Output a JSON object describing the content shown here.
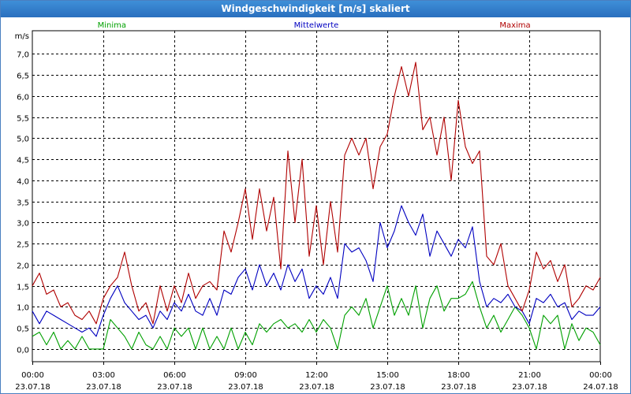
{
  "chart_data": {
    "type": "line",
    "title": "Windgeschwindigkeit [m/s] skaliert",
    "ylabel": "m/s",
    "ylim": [
      -0.3,
      7.55
    ],
    "yticks": [
      0.0,
      0.5,
      1.0,
      1.5,
      2.0,
      2.5,
      3.0,
      3.5,
      4.0,
      4.5,
      5.0,
      5.5,
      6.0,
      6.5,
      7.0
    ],
    "ytick_labels": [
      "0,0",
      "0,5",
      "1,0",
      "1,5",
      "2,0",
      "2,5",
      "3,0",
      "3,5",
      "4,0",
      "4,5",
      "5,0",
      "5,5",
      "6,0",
      "6,5",
      "7,0"
    ],
    "xlim": [
      0,
      24
    ],
    "xticks": [
      {
        "h": 0,
        "time": "00:00",
        "date": "23.07.18"
      },
      {
        "h": 3,
        "time": "03:00",
        "date": "23.07.18"
      },
      {
        "h": 6,
        "time": "06:00",
        "date": "23.07.18"
      },
      {
        "h": 9,
        "time": "09:00",
        "date": "23.07.18"
      },
      {
        "h": 12,
        "time": "12:00",
        "date": "23.07.18"
      },
      {
        "h": 15,
        "time": "15:00",
        "date": "23.07.18"
      },
      {
        "h": 18,
        "time": "18:00",
        "date": "23.07.18"
      },
      {
        "h": 21,
        "time": "21:00",
        "date": "23.07.18"
      },
      {
        "h": 24,
        "time": "00:00",
        "date": "24.07.18"
      }
    ],
    "grid": true,
    "legend_placement": "top",
    "series": [
      {
        "name": "Minima",
        "color": "#00a000",
        "x": [
          0,
          0.3,
          0.6,
          0.9,
          1.2,
          1.5,
          1.8,
          2.1,
          2.4,
          2.7,
          3.0,
          3.3,
          3.6,
          3.9,
          4.2,
          4.5,
          4.8,
          5.1,
          5.4,
          5.7,
          6.0,
          6.3,
          6.6,
          6.9,
          7.2,
          7.5,
          7.8,
          8.1,
          8.4,
          8.7,
          9.0,
          9.3,
          9.6,
          9.9,
          10.2,
          10.5,
          10.8,
          11.1,
          11.4,
          11.7,
          12.0,
          12.3,
          12.6,
          12.9,
          13.2,
          13.5,
          13.8,
          14.1,
          14.4,
          14.7,
          15.0,
          15.3,
          15.6,
          15.9,
          16.2,
          16.5,
          16.8,
          17.1,
          17.4,
          17.7,
          18.0,
          18.3,
          18.6,
          18.9,
          19.2,
          19.5,
          19.8,
          20.1,
          20.4,
          20.7,
          21.0,
          21.3,
          21.6,
          21.9,
          22.2,
          22.5,
          22.8,
          23.1,
          23.4,
          23.7,
          24.0
        ],
        "y": [
          0.3,
          0.4,
          0.1,
          0.4,
          0.0,
          0.2,
          0.0,
          0.3,
          0.0,
          0.0,
          0.0,
          0.7,
          0.5,
          0.3,
          0.0,
          0.4,
          0.1,
          0.0,
          0.3,
          0.0,
          0.5,
          0.3,
          0.5,
          0.0,
          0.5,
          0.0,
          0.3,
          0.0,
          0.5,
          0.0,
          0.4,
          0.1,
          0.6,
          0.4,
          0.6,
          0.7,
          0.5,
          0.6,
          0.4,
          0.7,
          0.4,
          0.7,
          0.5,
          0.0,
          0.8,
          1.0,
          0.8,
          1.2,
          0.5,
          1.0,
          1.5,
          0.8,
          1.2,
          0.8,
          1.5,
          0.5,
          1.2,
          1.5,
          0.9,
          1.2,
          1.2,
          1.3,
          1.6,
          1.0,
          0.5,
          0.8,
          0.4,
          0.7,
          1.0,
          0.8,
          0.5,
          0.0,
          0.8,
          0.6,
          0.8,
          0.0,
          0.6,
          0.2,
          0.5,
          0.4,
          0.1
        ]
      },
      {
        "name": "Mittelwerte",
        "color": "#0000c0",
        "x": [
          0,
          0.3,
          0.6,
          0.9,
          1.2,
          1.5,
          1.8,
          2.1,
          2.4,
          2.7,
          3.0,
          3.3,
          3.6,
          3.9,
          4.2,
          4.5,
          4.8,
          5.1,
          5.4,
          5.7,
          6.0,
          6.3,
          6.6,
          6.9,
          7.2,
          7.5,
          7.8,
          8.1,
          8.4,
          8.7,
          9.0,
          9.3,
          9.6,
          9.9,
          10.2,
          10.5,
          10.8,
          11.1,
          11.4,
          11.7,
          12.0,
          12.3,
          12.6,
          12.9,
          13.2,
          13.5,
          13.8,
          14.1,
          14.4,
          14.7,
          15.0,
          15.3,
          15.6,
          15.9,
          16.2,
          16.5,
          16.8,
          17.1,
          17.4,
          17.7,
          18.0,
          18.3,
          18.6,
          18.9,
          19.2,
          19.5,
          19.8,
          20.1,
          20.4,
          20.7,
          21.0,
          21.3,
          21.6,
          21.9,
          22.2,
          22.5,
          22.8,
          23.1,
          23.4,
          23.7,
          24.0
        ],
        "y": [
          0.9,
          0.6,
          0.9,
          0.8,
          0.7,
          0.6,
          0.5,
          0.4,
          0.5,
          0.3,
          0.8,
          1.2,
          1.5,
          1.1,
          0.9,
          0.7,
          0.8,
          0.5,
          0.9,
          0.7,
          1.1,
          0.9,
          1.3,
          0.9,
          0.8,
          1.2,
          0.8,
          1.4,
          1.3,
          1.7,
          1.9,
          1.4,
          2.0,
          1.5,
          1.8,
          1.4,
          2.0,
          1.6,
          1.9,
          1.2,
          1.5,
          1.3,
          1.7,
          1.2,
          2.5,
          2.3,
          2.4,
          2.1,
          1.6,
          3.0,
          2.4,
          2.8,
          3.4,
          3.0,
          2.7,
          3.2,
          2.2,
          2.8,
          2.5,
          2.2,
          2.6,
          2.4,
          2.9,
          1.6,
          1.0,
          1.2,
          1.1,
          1.3,
          1.0,
          0.9,
          0.6,
          1.2,
          1.1,
          1.3,
          1.0,
          1.1,
          0.7,
          0.9,
          0.8,
          0.8,
          1.0
        ]
      },
      {
        "name": "Maxima",
        "color": "#b00000",
        "x": [
          0,
          0.3,
          0.6,
          0.9,
          1.2,
          1.5,
          1.8,
          2.1,
          2.4,
          2.7,
          3.0,
          3.3,
          3.6,
          3.9,
          4.2,
          4.5,
          4.8,
          5.1,
          5.4,
          5.7,
          6.0,
          6.3,
          6.6,
          6.9,
          7.2,
          7.5,
          7.8,
          8.1,
          8.4,
          8.7,
          9.0,
          9.3,
          9.6,
          9.9,
          10.2,
          10.5,
          10.8,
          11.1,
          11.4,
          11.7,
          12.0,
          12.3,
          12.6,
          12.9,
          13.2,
          13.5,
          13.8,
          14.1,
          14.4,
          14.7,
          15.0,
          15.3,
          15.6,
          15.9,
          16.2,
          16.5,
          16.8,
          17.1,
          17.4,
          17.7,
          18.0,
          18.3,
          18.6,
          18.9,
          19.2,
          19.5,
          19.8,
          20.1,
          20.4,
          20.7,
          21.0,
          21.3,
          21.6,
          21.9,
          22.2,
          22.5,
          22.8,
          23.1,
          23.4,
          23.7,
          24.0
        ],
        "y": [
          1.5,
          1.8,
          1.3,
          1.4,
          1.0,
          1.1,
          0.8,
          0.7,
          0.9,
          0.6,
          1.2,
          1.5,
          1.7,
          2.3,
          1.5,
          0.9,
          1.1,
          0.6,
          1.5,
          0.9,
          1.5,
          1.1,
          1.8,
          1.2,
          1.5,
          1.6,
          1.4,
          2.8,
          2.3,
          3.0,
          3.8,
          2.6,
          3.8,
          2.8,
          3.6,
          1.9,
          4.7,
          3.0,
          4.5,
          2.2,
          3.4,
          2.0,
          3.5,
          2.3,
          4.6,
          5.0,
          4.6,
          5.0,
          3.8,
          4.8,
          5.1,
          6.0,
          6.7,
          6.0,
          6.8,
          5.2,
          5.5,
          4.6,
          5.5,
          4.0,
          5.9,
          4.8,
          4.4,
          4.7,
          2.2,
          2.0,
          2.5,
          1.5,
          1.2,
          0.9,
          1.4,
          2.3,
          1.9,
          2.1,
          1.6,
          2.0,
          1.0,
          1.2,
          1.5,
          1.4,
          1.7
        ]
      }
    ]
  }
}
